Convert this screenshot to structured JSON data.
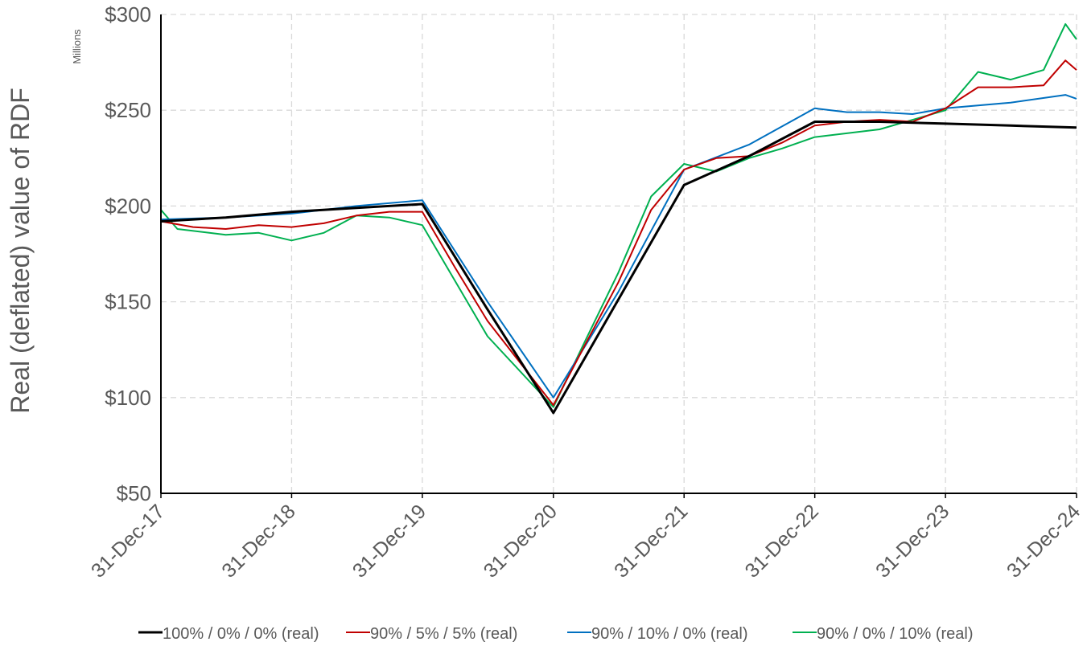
{
  "chart_data": {
    "type": "line",
    "ylabel": "Real (deflated) value of RDF",
    "yunit_label": "Millions",
    "ylim": [
      50,
      300
    ],
    "yticks": [
      "$50",
      "$100",
      "$150",
      "$200",
      "$250",
      "$300"
    ],
    "xlim": [
      "2017-12-31",
      "2024-12-31"
    ],
    "xticks": [
      "31-Dec-17",
      "31-Dec-18",
      "31-Dec-19",
      "31-Dec-20",
      "31-Dec-21",
      "31-Dec-22",
      "31-Dec-23",
      "31-Dec-24"
    ],
    "grid": true,
    "legend_position": "bottom",
    "series": [
      {
        "name": "100% / 0% / 0% (real)",
        "color": "#000000",
        "points": [
          [
            "2017-12-31",
            192
          ],
          [
            "2018-06-30",
            194
          ],
          [
            "2018-12-31",
            197
          ],
          [
            "2019-06-30",
            199
          ],
          [
            "2019-12-31",
            201
          ],
          [
            "2020-06-30",
            146
          ],
          [
            "2020-12-31",
            92
          ],
          [
            "2021-06-30",
            151
          ],
          [
            "2021-12-31",
            211
          ],
          [
            "2022-06-30",
            226
          ],
          [
            "2022-12-31",
            244
          ],
          [
            "2023-06-30",
            244
          ],
          [
            "2023-12-31",
            243
          ],
          [
            "2024-06-30",
            242
          ],
          [
            "2024-12-31",
            241
          ]
        ]
      },
      {
        "name": "90% / 5% / 5% (real)",
        "color": "#C00000",
        "points": [
          [
            "2017-12-31",
            192
          ],
          [
            "2018-03-31",
            189
          ],
          [
            "2018-06-30",
            188
          ],
          [
            "2018-09-30",
            190
          ],
          [
            "2018-12-31",
            189
          ],
          [
            "2019-03-31",
            191
          ],
          [
            "2019-06-30",
            195
          ],
          [
            "2019-09-30",
            197
          ],
          [
            "2019-12-31",
            197
          ],
          [
            "2020-03-31",
            168
          ],
          [
            "2020-06-30",
            140
          ],
          [
            "2020-09-30",
            118
          ],
          [
            "2020-12-31",
            96
          ],
          [
            "2021-03-31",
            128
          ],
          [
            "2021-06-30",
            160
          ],
          [
            "2021-09-30",
            198
          ],
          [
            "2021-12-31",
            219
          ],
          [
            "2022-03-31",
            225
          ],
          [
            "2022-06-30",
            226
          ],
          [
            "2022-09-30",
            233
          ],
          [
            "2022-12-31",
            242
          ],
          [
            "2023-03-31",
            244
          ],
          [
            "2023-06-30",
            245
          ],
          [
            "2023-09-30",
            244
          ],
          [
            "2023-12-31",
            251
          ],
          [
            "2024-03-31",
            262
          ],
          [
            "2024-06-30",
            262
          ],
          [
            "2024-09-30",
            263
          ],
          [
            "2024-11-30",
            276
          ],
          [
            "2024-12-31",
            271
          ]
        ]
      },
      {
        "name": "90% / 10% / 0% (real)",
        "color": "#0070C0",
        "points": [
          [
            "2017-12-31",
            193
          ],
          [
            "2018-06-30",
            194
          ],
          [
            "2018-12-31",
            196
          ],
          [
            "2019-06-30",
            200
          ],
          [
            "2019-12-31",
            203
          ],
          [
            "2020-06-30",
            150
          ],
          [
            "2020-12-31",
            100
          ],
          [
            "2021-06-30",
            155
          ],
          [
            "2021-12-31",
            219
          ],
          [
            "2022-06-30",
            232
          ],
          [
            "2022-12-31",
            251
          ],
          [
            "2023-03-31",
            249
          ],
          [
            "2023-06-30",
            249
          ],
          [
            "2023-09-30",
            248
          ],
          [
            "2023-12-31",
            251
          ],
          [
            "2024-06-30",
            254
          ],
          [
            "2024-11-30",
            258
          ],
          [
            "2024-12-31",
            256
          ]
        ]
      },
      {
        "name": "90% / 0% / 10% (real)",
        "color": "#00B050",
        "points": [
          [
            "2017-12-31",
            198
          ],
          [
            "2018-02-15",
            188
          ],
          [
            "2018-06-30",
            185
          ],
          [
            "2018-09-30",
            186
          ],
          [
            "2018-12-31",
            182
          ],
          [
            "2019-03-31",
            186
          ],
          [
            "2019-06-30",
            195
          ],
          [
            "2019-09-30",
            194
          ],
          [
            "2019-12-31",
            190
          ],
          [
            "2020-06-30",
            132
          ],
          [
            "2020-12-31",
            95
          ],
          [
            "2021-03-31",
            130
          ],
          [
            "2021-06-30",
            165
          ],
          [
            "2021-09-30",
            205
          ],
          [
            "2021-12-31",
            222
          ],
          [
            "2022-03-31",
            218
          ],
          [
            "2022-06-30",
            225
          ],
          [
            "2022-09-30",
            230
          ],
          [
            "2022-12-31",
            236
          ],
          [
            "2023-06-30",
            240
          ],
          [
            "2023-12-31",
            250
          ],
          [
            "2024-03-31",
            270
          ],
          [
            "2024-06-30",
            266
          ],
          [
            "2024-09-30",
            271
          ],
          [
            "2024-11-30",
            295
          ],
          [
            "2024-12-31",
            287
          ]
        ]
      }
    ]
  }
}
